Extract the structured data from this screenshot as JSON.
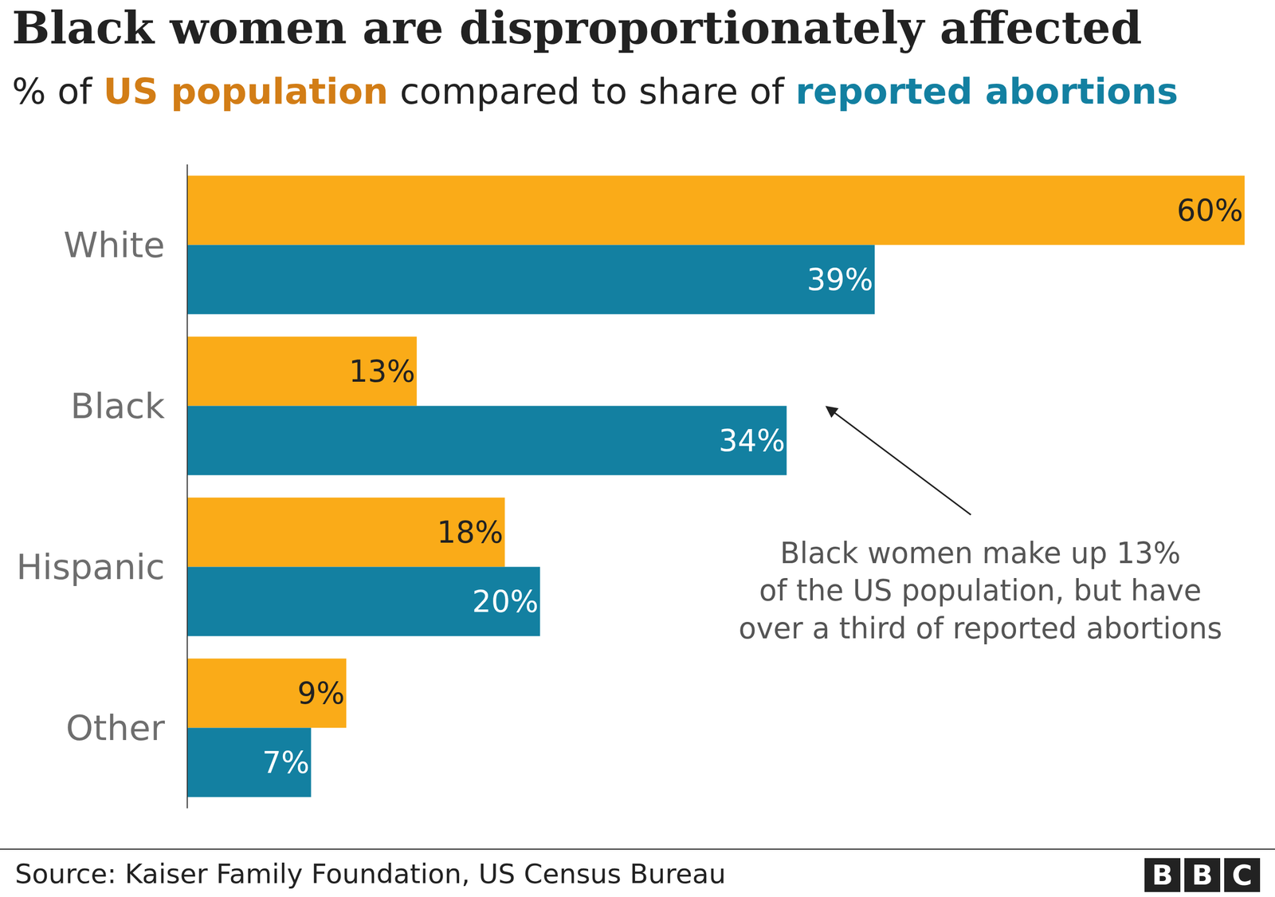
{
  "chart_data": {
    "type": "bar",
    "orientation": "horizontal",
    "title": "Black women are disproportionately affected",
    "subtitle": "% of US population compared to share of reported abortions",
    "categories": [
      "White",
      "Black",
      "Hispanic",
      "Other"
    ],
    "series": [
      {
        "name": "US population",
        "color": "#FAAB18",
        "values": [
          60,
          13,
          18,
          9
        ],
        "value_labels": [
          "60%",
          "13%",
          "18%",
          "9%"
        ]
      },
      {
        "name": "reported abortions",
        "color": "#1380A1",
        "values": [
          39,
          34,
          20,
          7
        ],
        "value_labels": [
          "39%",
          "34%",
          "20%",
          "7%"
        ]
      }
    ],
    "xlim": [
      0,
      60
    ],
    "grid": false,
    "data_labels": true,
    "tick_labels": "y",
    "annotation": [
      "Black women make up 13%",
      "of the US population, but have",
      "over a third of reported abortions"
    ],
    "source": "Source: Kaiser Family Foundation, US Census Bureau",
    "logo": "BBC"
  }
}
